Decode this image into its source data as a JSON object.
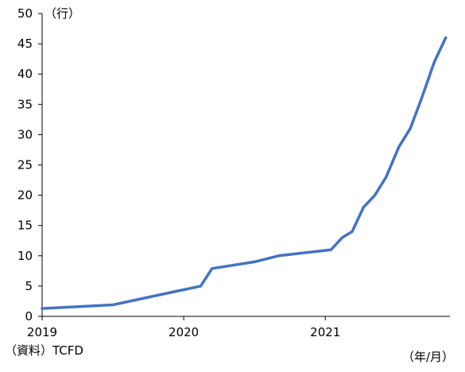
{
  "chart_data": {
    "type": "line",
    "title": "",
    "ylabel": "（行）",
    "xlabel": "（年/月）",
    "source": "（資料）TCFD",
    "ylim": [
      0,
      50
    ],
    "yticks": [
      0,
      5,
      10,
      15,
      20,
      25,
      30,
      35,
      40,
      45,
      50
    ],
    "xlim": [
      2019.0,
      2021.88
    ],
    "xticks": [
      {
        "value": 2019,
        "label": "2019"
      },
      {
        "value": 2020,
        "label": "2020"
      },
      {
        "value": 2021,
        "label": "2021"
      }
    ],
    "grid": false,
    "legend": "none",
    "series": [
      {
        "color": "#4472C4",
        "points": [
          {
            "x": 2019.0,
            "y": 1.3
          },
          {
            "x": 2019.5,
            "y": 1.9
          },
          {
            "x": 2019.92,
            "y": 4.0
          },
          {
            "x": 2020.12,
            "y": 5.0
          },
          {
            "x": 2020.2,
            "y": 7.9
          },
          {
            "x": 2020.5,
            "y": 9.0
          },
          {
            "x": 2020.67,
            "y": 10.0
          },
          {
            "x": 2021.04,
            "y": 11.0
          },
          {
            "x": 2021.12,
            "y": 13.0
          },
          {
            "x": 2021.19,
            "y": 14.0
          },
          {
            "x": 2021.27,
            "y": 18.0
          },
          {
            "x": 2021.35,
            "y": 20.0
          },
          {
            "x": 2021.43,
            "y": 23.0
          },
          {
            "x": 2021.52,
            "y": 28.0
          },
          {
            "x": 2021.6,
            "y": 31.0
          },
          {
            "x": 2021.68,
            "y": 36.0
          },
          {
            "x": 2021.77,
            "y": 42.0
          },
          {
            "x": 2021.85,
            "y": 46.0
          }
        ]
      }
    ]
  }
}
